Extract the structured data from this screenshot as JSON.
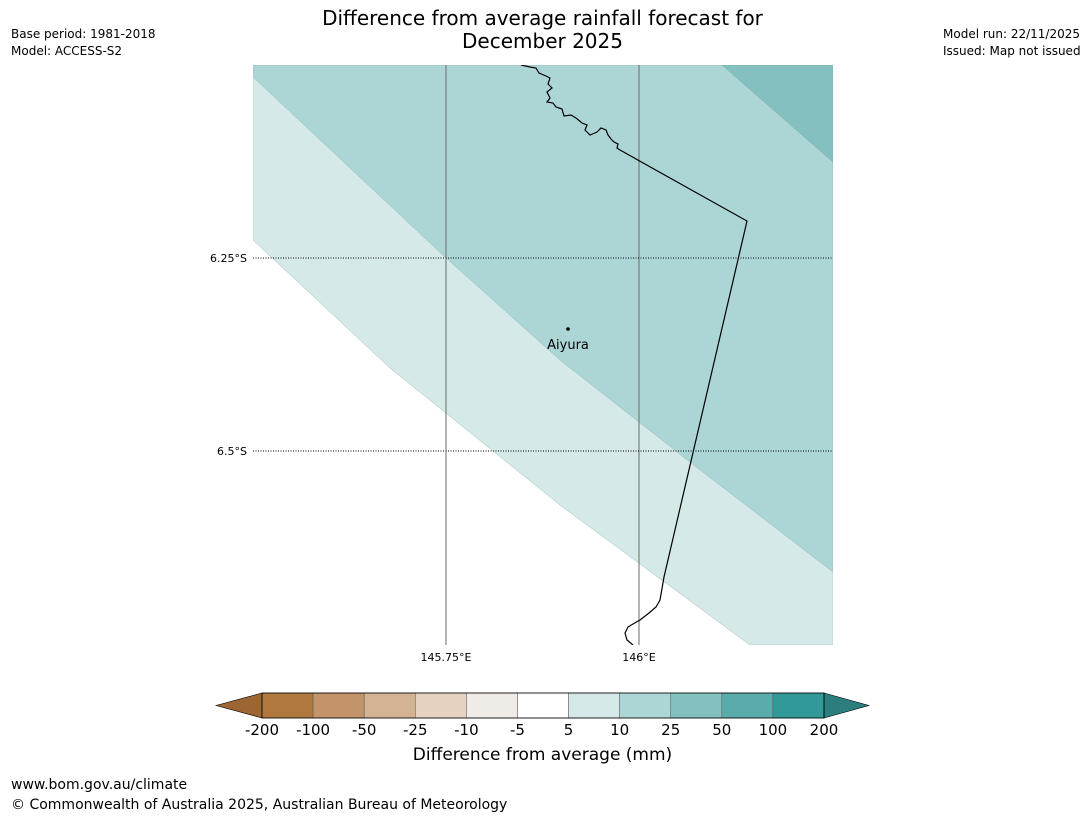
{
  "header": {
    "title_line1": "Difference from average rainfall forecast for",
    "title_line2": "December 2025",
    "base_period": "Base period: 1981-2018",
    "model": "Model: ACCESS-S2",
    "model_run": "Model run: 22/11/2025",
    "issued": "Issued: Map not issued"
  },
  "map": {
    "place_label": "Aiyura",
    "lat_labels": [
      "6.25°S",
      "6.5°S"
    ],
    "lon_labels": [
      "145.75°E",
      "146°E"
    ]
  },
  "legend": {
    "title": "Difference from average (mm)",
    "ticks": [
      "-200",
      "-100",
      "-50",
      "-25",
      "-10",
      "-5",
      "5",
      "10",
      "25",
      "50",
      "100",
      "200"
    ],
    "colors": [
      "#9c6531",
      "#b0783c",
      "#c39469",
      "#d4b294",
      "#e6d2c0",
      "#efebe7",
      "#ffffff",
      "#d5e9e8",
      "#acd6d5",
      "#83c0bf",
      "#5aacab",
      "#31999a",
      "#2c7e7e"
    ]
  },
  "footer": {
    "url": "www.bom.gov.au/climate",
    "copyright": "© Commonwealth of Australia 2025, Australian Bureau of Meteorology"
  }
}
